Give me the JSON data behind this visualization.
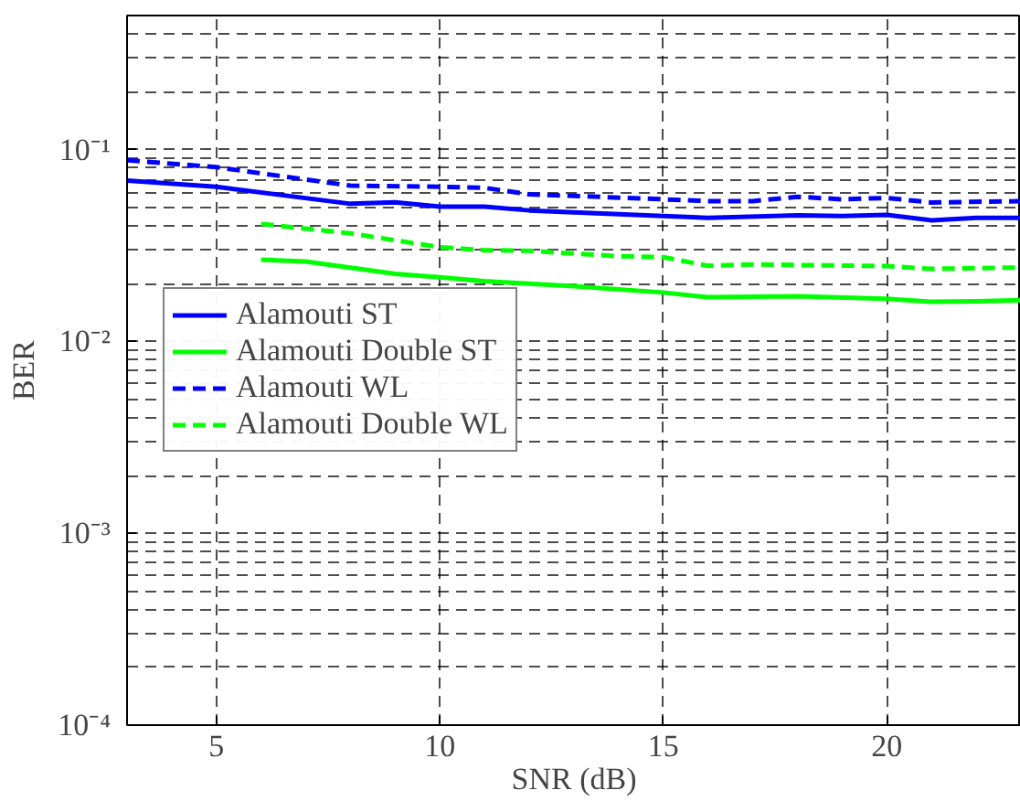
{
  "chart_data": {
    "type": "line",
    "xlabel": "SNR (dB)",
    "ylabel": "BER",
    "log": "y",
    "grid": true,
    "legend": "left",
    "xlim": [
      3,
      23
    ],
    "xticks": [
      5,
      10,
      15,
      20
    ],
    "ylim": [
      0.0001,
      0.5
    ],
    "yticks": [
      {
        "value": 0.0001,
        "label": "10⁻⁴"
      },
      {
        "value": 0.001,
        "label": "10⁻³"
      },
      {
        "value": 0.01,
        "label": "10⁻²"
      },
      {
        "value": 0.1,
        "label": "10⁻¹"
      }
    ],
    "series": [
      {
        "name": "Alamouti ST",
        "color": "#0000ff",
        "line_style": "solid",
        "x": [
          3,
          5,
          8,
          9,
          10,
          11,
          12,
          15,
          16,
          18,
          19,
          20,
          21,
          22,
          23
        ],
        "values": [
          0.0689,
          0.064,
          0.0522,
          0.0531,
          0.0504,
          0.0504,
          0.0482,
          0.0451,
          0.0441,
          0.0454,
          0.0451,
          0.0457,
          0.0428,
          0.0441,
          0.0441
        ]
      },
      {
        "name": "Alamouti Double ST",
        "color": "#00ff00",
        "line_style": "solid",
        "x": [
          6,
          7,
          9,
          10,
          11,
          13,
          15,
          16,
          18,
          20,
          21,
          22,
          23
        ],
        "values": [
          0.0267,
          0.0261,
          0.0225,
          0.0216,
          0.0206,
          0.0194,
          0.018,
          0.017,
          0.0172,
          0.0167,
          0.0161,
          0.0162,
          0.0164
        ]
      },
      {
        "name": "Alamouti WL",
        "color": "#0000ff",
        "line_style": "dashed",
        "x": [
          3,
          5,
          8,
          10,
          11,
          12,
          15,
          16,
          17,
          18,
          19,
          20,
          21,
          23
        ],
        "values": [
          0.088,
          0.081,
          0.0649,
          0.064,
          0.0632,
          0.0585,
          0.0551,
          0.0539,
          0.0539,
          0.0568,
          0.0551,
          0.056,
          0.053,
          0.0539
        ]
      },
      {
        "name": "Alamouti Double WL",
        "color": "#00ff00",
        "line_style": "dashed",
        "x": [
          6,
          8,
          10,
          11,
          12,
          14,
          15,
          16,
          17,
          20,
          21,
          23
        ],
        "values": [
          0.041,
          0.0366,
          0.031,
          0.0299,
          0.0297,
          0.0278,
          0.0275,
          0.0248,
          0.0252,
          0.0247,
          0.0239,
          0.0243
        ]
      }
    ]
  }
}
